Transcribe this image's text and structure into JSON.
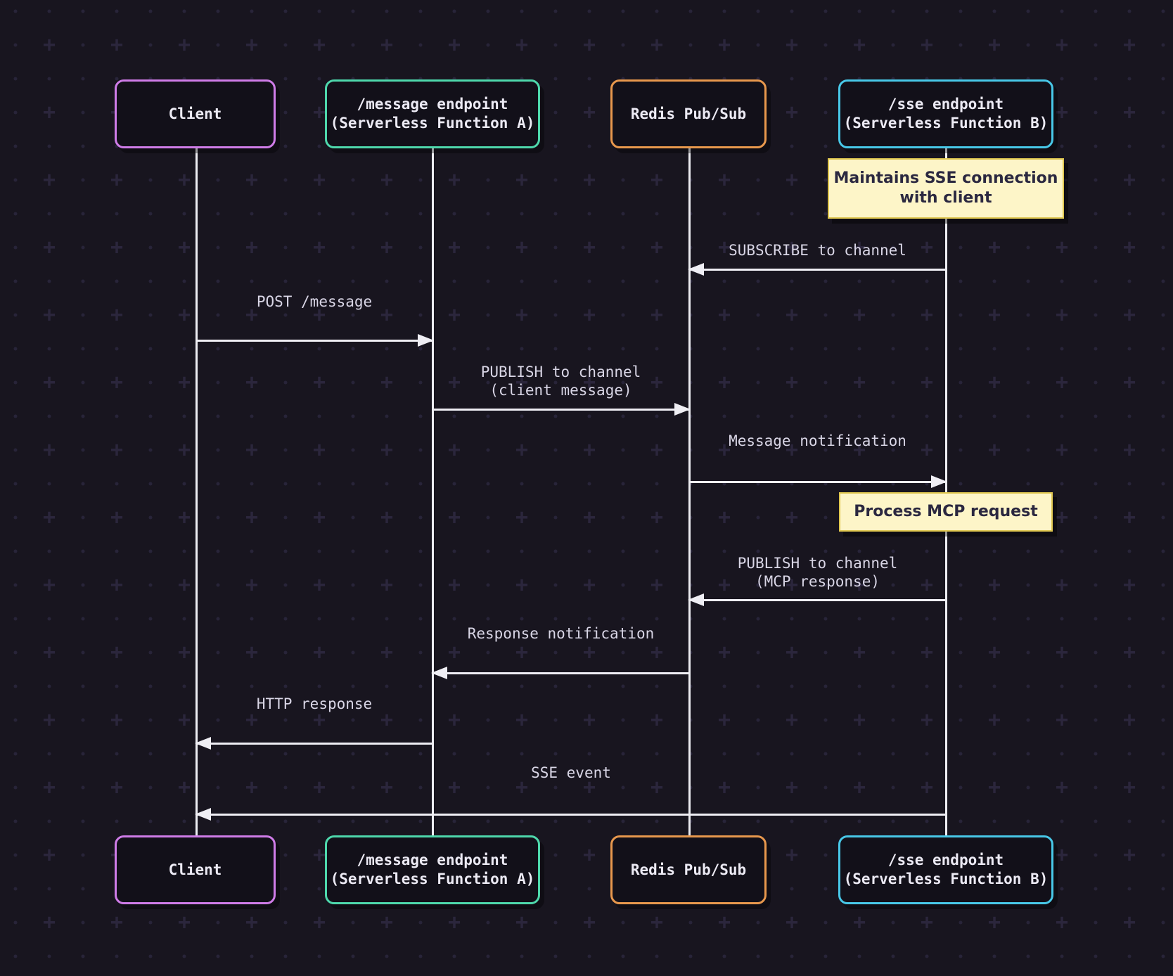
{
  "actors": [
    {
      "id": "client",
      "label": "Client",
      "border_color": "#cf7ce8"
    },
    {
      "id": "message-endpoint",
      "label": "/message endpoint\n(Serverless Function A)",
      "border_color": "#4ed8ac"
    },
    {
      "id": "redis-pubsub",
      "label": "Redis Pub/Sub",
      "border_color": "#e8984d"
    },
    {
      "id": "sse-endpoint",
      "label": "/sse endpoint\n(Serverless Function B)",
      "border_color": "#48c8e8"
    }
  ],
  "notes": [
    {
      "over": "sse-endpoint",
      "text": "Maintains SSE connection\nwith client"
    },
    {
      "over": "sse-endpoint",
      "text": "Process MCP request"
    }
  ],
  "messages": [
    {
      "from": "sse-endpoint",
      "to": "redis-pubsub",
      "label": "SUBSCRIBE to channel"
    },
    {
      "from": "client",
      "to": "message-endpoint",
      "label": "POST /message"
    },
    {
      "from": "message-endpoint",
      "to": "redis-pubsub",
      "label": "PUBLISH to channel\n(client message)"
    },
    {
      "from": "redis-pubsub",
      "to": "sse-endpoint",
      "label": "Message notification"
    },
    {
      "from": "sse-endpoint",
      "to": "redis-pubsub",
      "label": "PUBLISH to channel\n(MCP response)"
    },
    {
      "from": "redis-pubsub",
      "to": "message-endpoint",
      "label": "Response notification"
    },
    {
      "from": "message-endpoint",
      "to": "client",
      "label": "HTTP response"
    },
    {
      "from": "sse-endpoint",
      "to": "client",
      "label": "SSE event"
    }
  ],
  "colors": {
    "background": "#18151f",
    "actor_fill": "#121019",
    "actor_text": "#eceaf4",
    "client_border": "#cf7ce8",
    "message_endpoint_border": "#4ed8ac",
    "redis_border": "#e8984d",
    "sse_border": "#48c8e8",
    "note_background": "#fdf5c8",
    "note_border": "#dfc64f",
    "note_text": "#2b2840",
    "line": "#efeef4",
    "label_text": "#d9d6e6",
    "pattern": "#766cb4"
  }
}
